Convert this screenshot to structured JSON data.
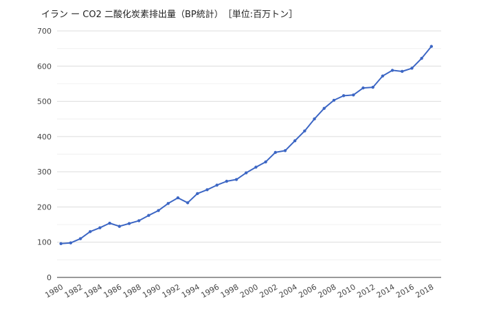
{
  "chart_data": {
    "type": "line",
    "title": "イラン ー CO2 二酸化炭素排出量（BP統計）　［単位:百万トン］",
    "xlabel": "",
    "ylabel": "",
    "ylim": [
      0,
      700
    ],
    "yticks": [
      0,
      100,
      200,
      300,
      400,
      500,
      600,
      700
    ],
    "xticks": [
      "1980",
      "1982",
      "1984",
      "1986",
      "1988",
      "1990",
      "1992",
      "1994",
      "1996",
      "1998",
      "2000",
      "2002",
      "2004",
      "2006",
      "2008",
      "2010",
      "2012",
      "2014",
      "2016",
      "2018"
    ],
    "grid": true,
    "legend": "none",
    "color": "#3c66c4",
    "x": [
      1980,
      1981,
      1982,
      1983,
      1984,
      1985,
      1986,
      1987,
      1988,
      1989,
      1990,
      1991,
      1992,
      1993,
      1994,
      1995,
      1996,
      1997,
      1998,
      1999,
      2000,
      2001,
      2002,
      2003,
      2004,
      2005,
      2006,
      2007,
      2008,
      2009,
      2010,
      2011,
      2012,
      2013,
      2014,
      2015,
      2016,
      2017,
      2018
    ],
    "values": [
      96,
      98,
      110,
      130,
      141,
      154,
      145,
      153,
      161,
      176,
      190,
      210,
      226,
      212,
      238,
      249,
      262,
      273,
      278,
      297,
      313,
      328,
      355,
      360,
      388,
      416,
      450,
      480,
      503,
      516,
      518,
      538,
      540,
      572,
      588,
      585,
      594,
      622,
      656
    ]
  }
}
